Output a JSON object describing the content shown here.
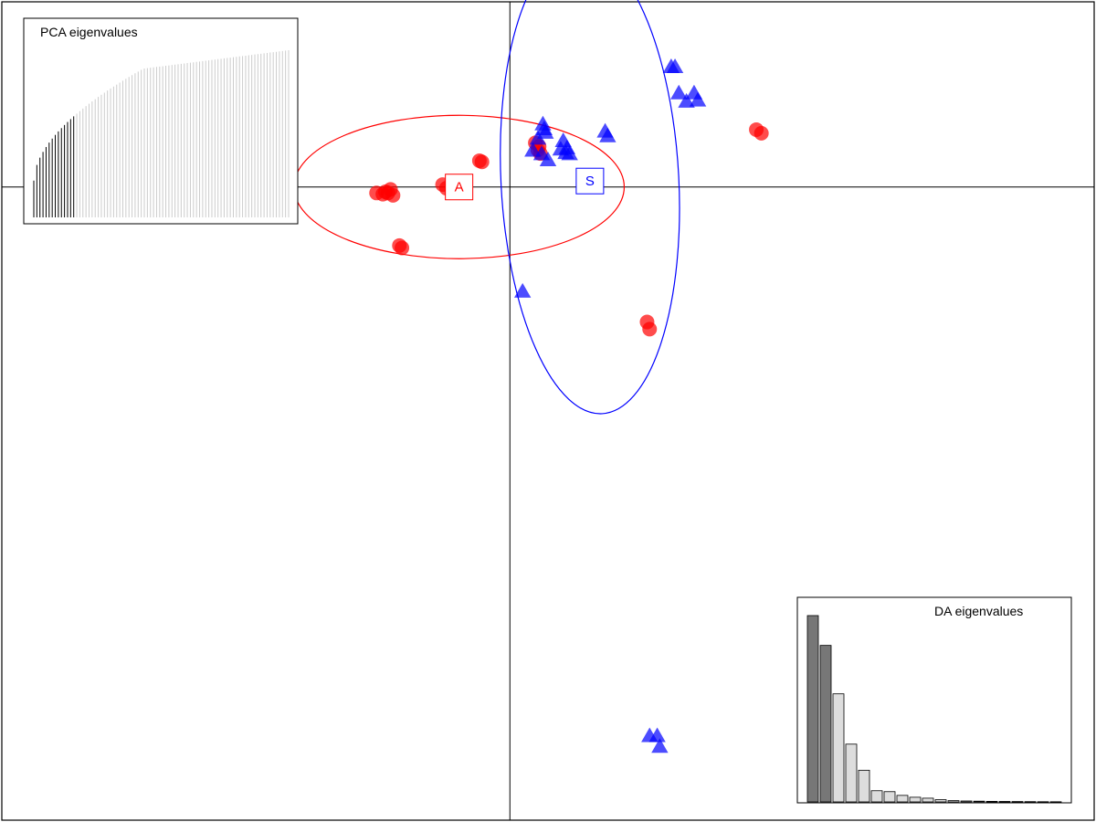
{
  "chart_data": {
    "type": "scatter",
    "title": "",
    "xlabel": "",
    "ylabel": "",
    "xlim": [
      -4.0,
      4.6
    ],
    "ylim": [
      -5.3,
      1.55
    ],
    "axes_origin": [
      0,
      0
    ],
    "grid": false,
    "series": [
      {
        "name": "A",
        "color": "#ff0000",
        "marker": "circle",
        "centroid": [
          -0.4,
          0.0
        ],
        "ellipse": {
          "rx": 1.3,
          "ry": 0.6,
          "angle_deg": 0
        },
        "points": [
          [
            -1.05,
            -0.05
          ],
          [
            -1.0,
            -0.06
          ],
          [
            -0.98,
            -0.04
          ],
          [
            -0.96,
            -0.05
          ],
          [
            -0.94,
            -0.02
          ],
          [
            -0.92,
            -0.07
          ],
          [
            -0.53,
            0.02
          ],
          [
            -0.5,
            -0.01
          ],
          [
            -0.24,
            0.22
          ],
          [
            -0.22,
            0.21
          ],
          [
            -0.87,
            -0.49
          ],
          [
            -0.85,
            -0.51
          ],
          [
            0.2,
            0.37
          ],
          [
            0.22,
            0.31
          ],
          [
            0.23,
            0.34
          ],
          [
            0.24,
            0.28
          ],
          [
            1.08,
            -1.13
          ],
          [
            1.1,
            -1.19
          ],
          [
            1.94,
            0.48
          ],
          [
            1.98,
            0.45
          ]
        ]
      },
      {
        "name": "S",
        "color": "#0000ff",
        "marker": "triangle",
        "centroid": [
          0.63,
          0.05
        ],
        "ellipse": {
          "rx": 0.7,
          "ry": 1.95,
          "angle_deg": -3
        },
        "points": [
          [
            0.26,
            0.52
          ],
          [
            0.28,
            0.45
          ],
          [
            0.22,
            0.4
          ],
          [
            0.18,
            0.3
          ],
          [
            0.25,
            0.27
          ],
          [
            0.3,
            0.22
          ],
          [
            0.27,
            0.48
          ],
          [
            0.4,
            0.31
          ],
          [
            0.42,
            0.38
          ],
          [
            0.45,
            0.32
          ],
          [
            0.47,
            0.27
          ],
          [
            0.44,
            0.28
          ],
          [
            0.77,
            0.42
          ],
          [
            0.75,
            0.46
          ],
          [
            1.27,
            1.0
          ],
          [
            1.3,
            1.0
          ],
          [
            1.33,
            0.78
          ],
          [
            1.45,
            0.78
          ],
          [
            1.39,
            0.71
          ],
          [
            1.48,
            0.72
          ],
          [
            0.1,
            -0.88
          ],
          [
            1.1,
            -4.6
          ],
          [
            1.16,
            -4.6
          ],
          [
            1.18,
            -4.69
          ]
        ]
      }
    ],
    "group_labels": [
      {
        "text": "A",
        "color": "#ff0000",
        "at": [
          -0.4,
          0.0
        ]
      },
      {
        "text": "S",
        "color": "#0000ff",
        "at": [
          0.63,
          0.05
        ]
      }
    ],
    "insets": [
      {
        "title": "PCA eigenvalues",
        "type": "bar",
        "placement": "top-left",
        "retained_color": "#000000",
        "other_color": "#cccccc",
        "n_bars": 84,
        "n_retained": 14,
        "shape": "cumulative-rising"
      },
      {
        "title": "DA eigenvalues",
        "type": "bar",
        "placement": "bottom-right",
        "retained_color": "#777777",
        "other_color": "#dddddd",
        "values": [
          100,
          84,
          58,
          31,
          17,
          6,
          5.5,
          3.5,
          2.5,
          2,
          1.2,
          0.7,
          0.5,
          0.4,
          0.3,
          0.25,
          0.2,
          0.15,
          0.1,
          0.08
        ],
        "n_retained": 2
      }
    ]
  }
}
